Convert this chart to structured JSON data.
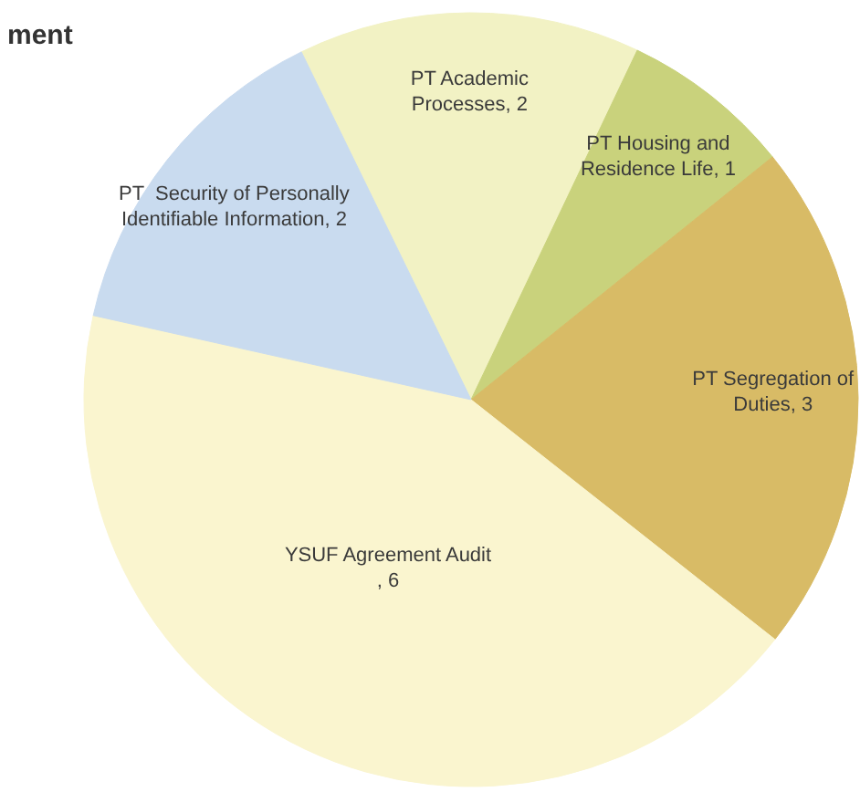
{
  "chart_data": {
    "type": "pie",
    "title": "ment",
    "categories": [
      "PT Academic Processes",
      "PT Housing and Residence Life",
      "PT Segregation of Duties",
      "YSUF Agreement Audit",
      "PT  Security of Personally Identifiable Information"
    ],
    "values": [
      2,
      1,
      3,
      6,
      2
    ],
    "value_labels": [
      ", 2",
      ", 1",
      ", 3",
      ", 6",
      ", 2"
    ],
    "colors": [
      "#f2f2c4",
      "#c9d27c",
      "#d8bb66",
      "#faf5cf",
      "#c9dbef"
    ]
  }
}
